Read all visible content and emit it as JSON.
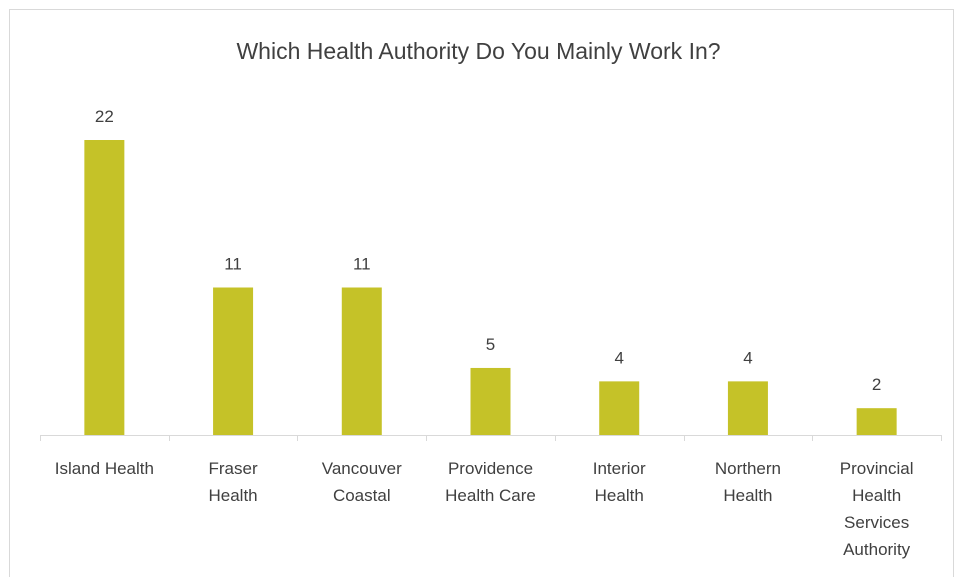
{
  "chart_data": {
    "type": "bar",
    "title": "Which Health Authority Do You Mainly Work In?",
    "categories": [
      [
        "Island Health"
      ],
      [
        "Fraser",
        "Health"
      ],
      [
        "Vancouver",
        "Coastal"
      ],
      [
        "Providence",
        "Health Care"
      ],
      [
        "Interior",
        "Health"
      ],
      [
        "Northern",
        "Health"
      ],
      [
        "Provincial",
        "Health",
        "Services",
        "Authority"
      ]
    ],
    "values": [
      22,
      11,
      11,
      5,
      4,
      4,
      2
    ],
    "xlabel": "",
    "ylabel": "",
    "ylim": [
      0,
      22
    ],
    "grid": false,
    "legend": "none",
    "bar_color": "#c5c228",
    "axis_color": "#d9d9d9",
    "text_color": "#404040"
  }
}
